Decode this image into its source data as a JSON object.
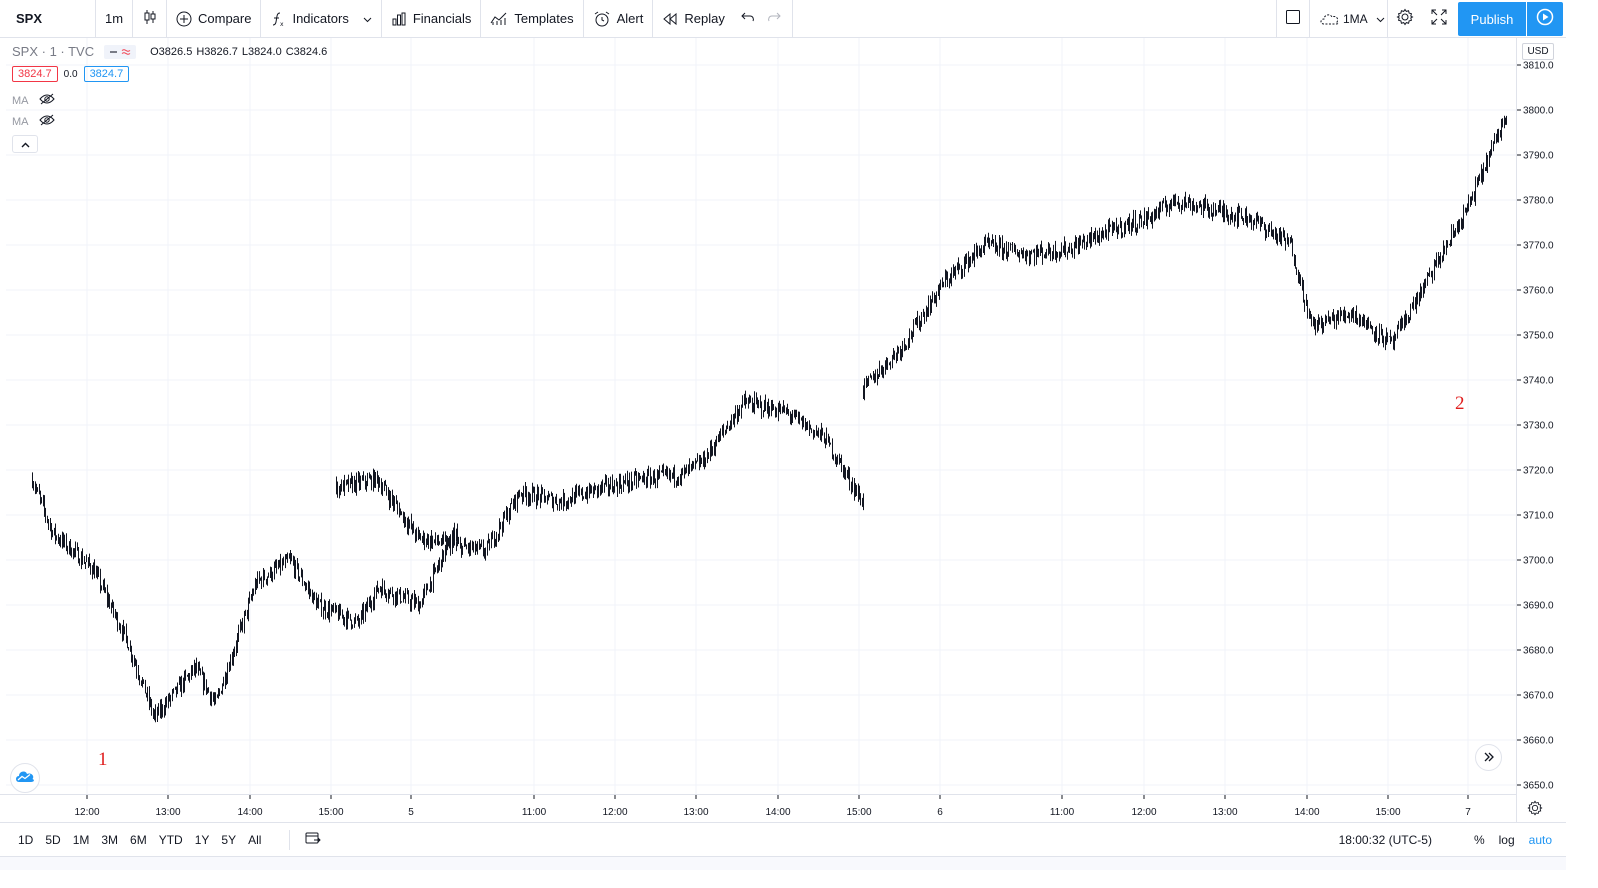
{
  "toolbar": {
    "symbol": "SPX",
    "interval": "1m",
    "compare_label": "Compare",
    "indicators_label": "Indicators",
    "financials_label": "Financials",
    "templates_label": "Templates",
    "alert_label": "Alert",
    "replay_label": "Replay",
    "layout_label": "1MA",
    "publish_label": "Publish"
  },
  "legend": {
    "symbol_line": "SPX · 1 · TVC",
    "open": "O3826.5",
    "high": "H3826.7",
    "low": "L3824.0",
    "close": "C3824.6",
    "bid": "3824.7",
    "spread": "0.0",
    "ask": "3824.7",
    "ma1": "MA",
    "ma2": "MA"
  },
  "price_scale": {
    "currency": "USD"
  },
  "annotations": {
    "marker1": "1",
    "marker2": "2"
  },
  "bottombar": {
    "ranges": [
      "1D",
      "5D",
      "1M",
      "3M",
      "6M",
      "YTD",
      "1Y",
      "5Y",
      "All"
    ],
    "clock": "18:00:32 (UTC-5)",
    "percent": "%",
    "log": "log",
    "auto": "auto"
  },
  "colors": {
    "accent": "#2196f3",
    "candle": "#131722",
    "grid": "#f0f3fa",
    "annotation": "#e01e1e"
  },
  "chart_data": {
    "type": "line",
    "style": "candlestick",
    "ylim": [
      3648,
      3816
    ],
    "y_ticks": [
      3650,
      3660,
      3670,
      3680,
      3690,
      3700,
      3710,
      3720,
      3730,
      3740,
      3750,
      3760,
      3770,
      3780,
      3790,
      3800,
      3810
    ],
    "x_ticks": [
      "12:00",
      "13:00",
      "14:00",
      "15:00",
      "5",
      "11:00",
      "12:00",
      "13:00",
      "14:00",
      "15:00",
      "6",
      "11:00",
      "12:00",
      "13:00",
      "14:00",
      "15:00",
      "7"
    ],
    "series": [
      {
        "x": [
          "Jan 4 10:45",
          "Jan 4 11:00",
          "Jan 4 11:30",
          "Jan 4 11:55",
          "Jan 4 12:15",
          "Jan 4 12:45",
          "Jan 4 13:00",
          "Jan 4 13:30",
          "Jan 4 13:55",
          "Jan 4 14:15",
          "Jan 4 14:45",
          "Jan 4 15:00",
          "Jan 4 15:30",
          "Jan 4 15:59",
          "Jan 5 09:30",
          "Jan 5 10:00",
          "Jan 5 10:30",
          "Jan 5 11:00",
          "Jan 5 11:20",
          "Jan 5 11:45",
          "Jan 5 12:15",
          "Jan 5 12:45",
          "Jan 5 13:15",
          "Jan 5 13:45",
          "Jan 5 14:00",
          "Jan 5 14:30",
          "Jan 5 15:00",
          "Jan 5 15:30",
          "Jan 5 15:59",
          "Jan 6 09:30",
          "Jan 6 10:00",
          "Jan 6 10:30",
          "Jan 6 11:00",
          "Jan 6 11:30",
          "Jan 6 12:00",
          "Jan 6 12:30",
          "Jan 6 13:00",
          "Jan 6 13:20",
          "Jan 6 13:45",
          "Jan 6 14:15",
          "Jan 6 14:45",
          "Jan 6 15:00",
          "Jan 6 15:30",
          "Jan 6 15:59",
          "Jan 7 09:30",
          "Jan 7 10:00"
        ],
        "values": [
          3718,
          3706,
          3698,
          3682,
          3665,
          3676,
          3668,
          3695,
          3700,
          3690,
          3686,
          3694,
          3690,
          3708,
          3716,
          3718,
          3705,
          3703,
          3702,
          3715,
          3713,
          3716,
          3718,
          3719,
          3722,
          3735,
          3733,
          3727,
          3712,
          3738,
          3748,
          3762,
          3770,
          3768,
          3769,
          3773,
          3776,
          3780,
          3778,
          3776,
          3770,
          3752,
          3755,
          3748,
          3778,
          3800
        ]
      }
    ]
  }
}
